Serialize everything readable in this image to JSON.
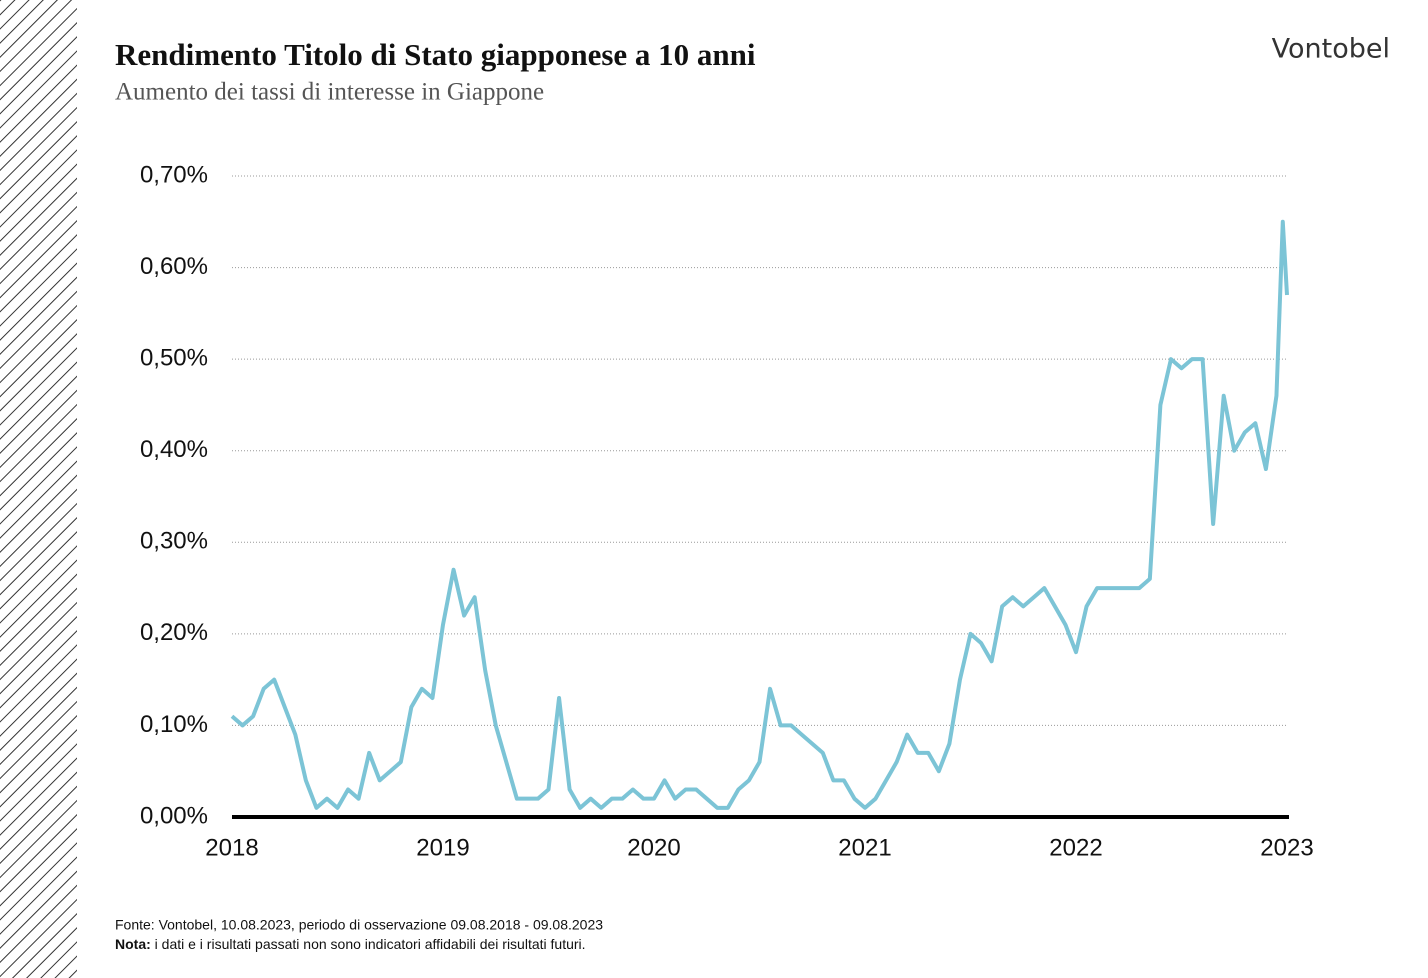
{
  "chart_data": {
    "type": "line",
    "title": "Rendimento Titolo di Stato giapponese a 10 anni",
    "subtitle": "Aumento dei tassi di interesse in Giappone",
    "brand": "Vontobel",
    "source": "Fonte: Vontobel, 10.08.2023, periodo di osservazione 09.08.2018 - 09.08.2023",
    "note_label": "Nota:",
    "note": "i dati e i risultati passati non sono indicatori affidabili dei risultati futuri.",
    "x": [
      2018.0,
      2018.05,
      2018.1,
      2018.15,
      2018.2,
      2018.25,
      2018.3,
      2018.35,
      2018.4,
      2018.45,
      2018.5,
      2018.55,
      2018.6,
      2018.65,
      2018.7,
      2018.75,
      2018.8,
      2018.85,
      2018.9,
      2018.95,
      2019.0,
      2019.05,
      2019.1,
      2019.15,
      2019.2,
      2019.25,
      2019.3,
      2019.35,
      2019.4,
      2019.45,
      2019.5,
      2019.55,
      2019.6,
      2019.65,
      2019.7,
      2019.75,
      2019.8,
      2019.85,
      2019.9,
      2019.95,
      2020.0,
      2020.05,
      2020.1,
      2020.15,
      2020.2,
      2020.25,
      2020.3,
      2020.35,
      2020.4,
      2020.45,
      2020.5,
      2020.55,
      2020.6,
      2020.65,
      2020.7,
      2020.75,
      2020.8,
      2020.85,
      2020.9,
      2020.95,
      2021.0,
      2021.05,
      2021.1,
      2021.15,
      2021.2,
      2021.25,
      2021.3,
      2021.35,
      2021.4,
      2021.45,
      2021.5,
      2021.55,
      2021.6,
      2021.65,
      2021.7,
      2021.75,
      2021.8,
      2021.85,
      2021.9,
      2021.95,
      2022.0,
      2022.05,
      2022.1,
      2022.15,
      2022.2,
      2022.25,
      2022.3,
      2022.35,
      2022.4,
      2022.45,
      2022.5,
      2022.55,
      2022.6,
      2022.65,
      2022.7,
      2022.75,
      2022.8,
      2022.85,
      2022.9,
      2022.95,
      2022.98,
      2023.0
    ],
    "series": [
      {
        "name": "Rendimento",
        "color": "#7cc4d6",
        "values": [
          0.11,
          0.1,
          0.11,
          0.14,
          0.15,
          0.12,
          0.09,
          0.04,
          0.01,
          0.02,
          0.01,
          0.03,
          0.02,
          0.07,
          0.04,
          0.05,
          0.06,
          0.12,
          0.14,
          0.13,
          0.21,
          0.27,
          0.22,
          0.24,
          0.16,
          0.1,
          0.06,
          0.02,
          0.02,
          0.02,
          0.03,
          0.13,
          0.03,
          0.01,
          0.02,
          0.01,
          0.02,
          0.02,
          0.03,
          0.02,
          0.02,
          0.04,
          0.02,
          0.03,
          0.03,
          0.02,
          0.01,
          0.01,
          0.03,
          0.04,
          0.06,
          0.14,
          0.1,
          0.1,
          0.09,
          0.08,
          0.07,
          0.04,
          0.04,
          0.02,
          0.01,
          0.02,
          0.04,
          0.06,
          0.09,
          0.07,
          0.07,
          0.05,
          0.08,
          0.15,
          0.2,
          0.19,
          0.17,
          0.23,
          0.24,
          0.23,
          0.24,
          0.25,
          0.23,
          0.21,
          0.18,
          0.23,
          0.25,
          0.25,
          0.25,
          0.25,
          0.25,
          0.26,
          0.45,
          0.5,
          0.49,
          0.5,
          0.5,
          0.32,
          0.46,
          0.4,
          0.42,
          0.43,
          0.38,
          0.46,
          0.65,
          0.57
        ]
      }
    ],
    "xlim": [
      2018,
      2023
    ],
    "xticks": [
      2018,
      2019,
      2020,
      2021,
      2022,
      2023
    ],
    "ylim": [
      0,
      0.7
    ],
    "yticks": [
      {
        "value": 0,
        "label": "0,00%"
      },
      {
        "value": 0.1,
        "label": "0,10%"
      },
      {
        "value": 0.2,
        "label": "0,20%"
      },
      {
        "value": 0.3,
        "label": "0,30%"
      },
      {
        "value": 0.4,
        "label": "0,40%"
      },
      {
        "value": 0.5,
        "label": "0,50%"
      },
      {
        "value": 0.6,
        "label": "0,60%"
      },
      {
        "value": 0.7,
        "label": "0,70%"
      }
    ],
    "grid": true
  }
}
